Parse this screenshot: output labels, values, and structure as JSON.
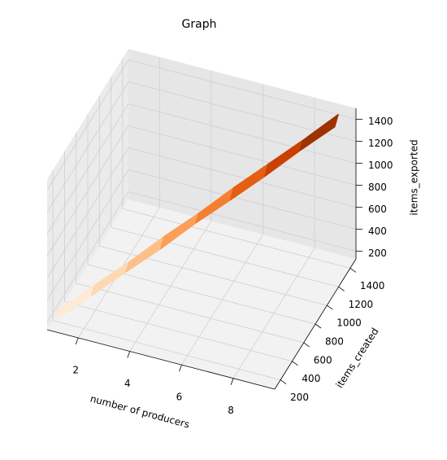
{
  "chart_data": {
    "type": "surface",
    "title": "Graph",
    "x_label": "number of producers",
    "y_label": "items_created",
    "z_label": "items_exported",
    "x": [
      1,
      1,
      2,
      2,
      3,
      3,
      4,
      4,
      5,
      5,
      6,
      6,
      7,
      7,
      8,
      8,
      9,
      9
    ],
    "y": [
      180,
      230,
      330,
      380,
      480,
      530,
      630,
      690,
      790,
      840,
      940,
      1000,
      1090,
      1150,
      1250,
      1300,
      1400,
      1460
    ],
    "z": [
      175,
      220,
      320,
      370,
      470,
      515,
      615,
      675,
      775,
      820,
      920,
      980,
      1070,
      1130,
      1230,
      1280,
      1380,
      1440
    ],
    "colormap": [
      "#fff5eb",
      "#fdd0a2",
      "#fd8d3c",
      "#d94801",
      "#7f2704"
    ],
    "xlim": [
      0.8,
      9.6
    ],
    "ylim": [
      100,
      1500
    ],
    "zlim": [
      130,
      1500
    ],
    "xticks": [
      2,
      4,
      6,
      8
    ],
    "yticks": [
      200,
      400,
      600,
      800,
      1000,
      1200,
      1400
    ],
    "zticks": [
      200,
      400,
      600,
      800,
      1000,
      1200,
      1400
    ],
    "grid": true
  }
}
